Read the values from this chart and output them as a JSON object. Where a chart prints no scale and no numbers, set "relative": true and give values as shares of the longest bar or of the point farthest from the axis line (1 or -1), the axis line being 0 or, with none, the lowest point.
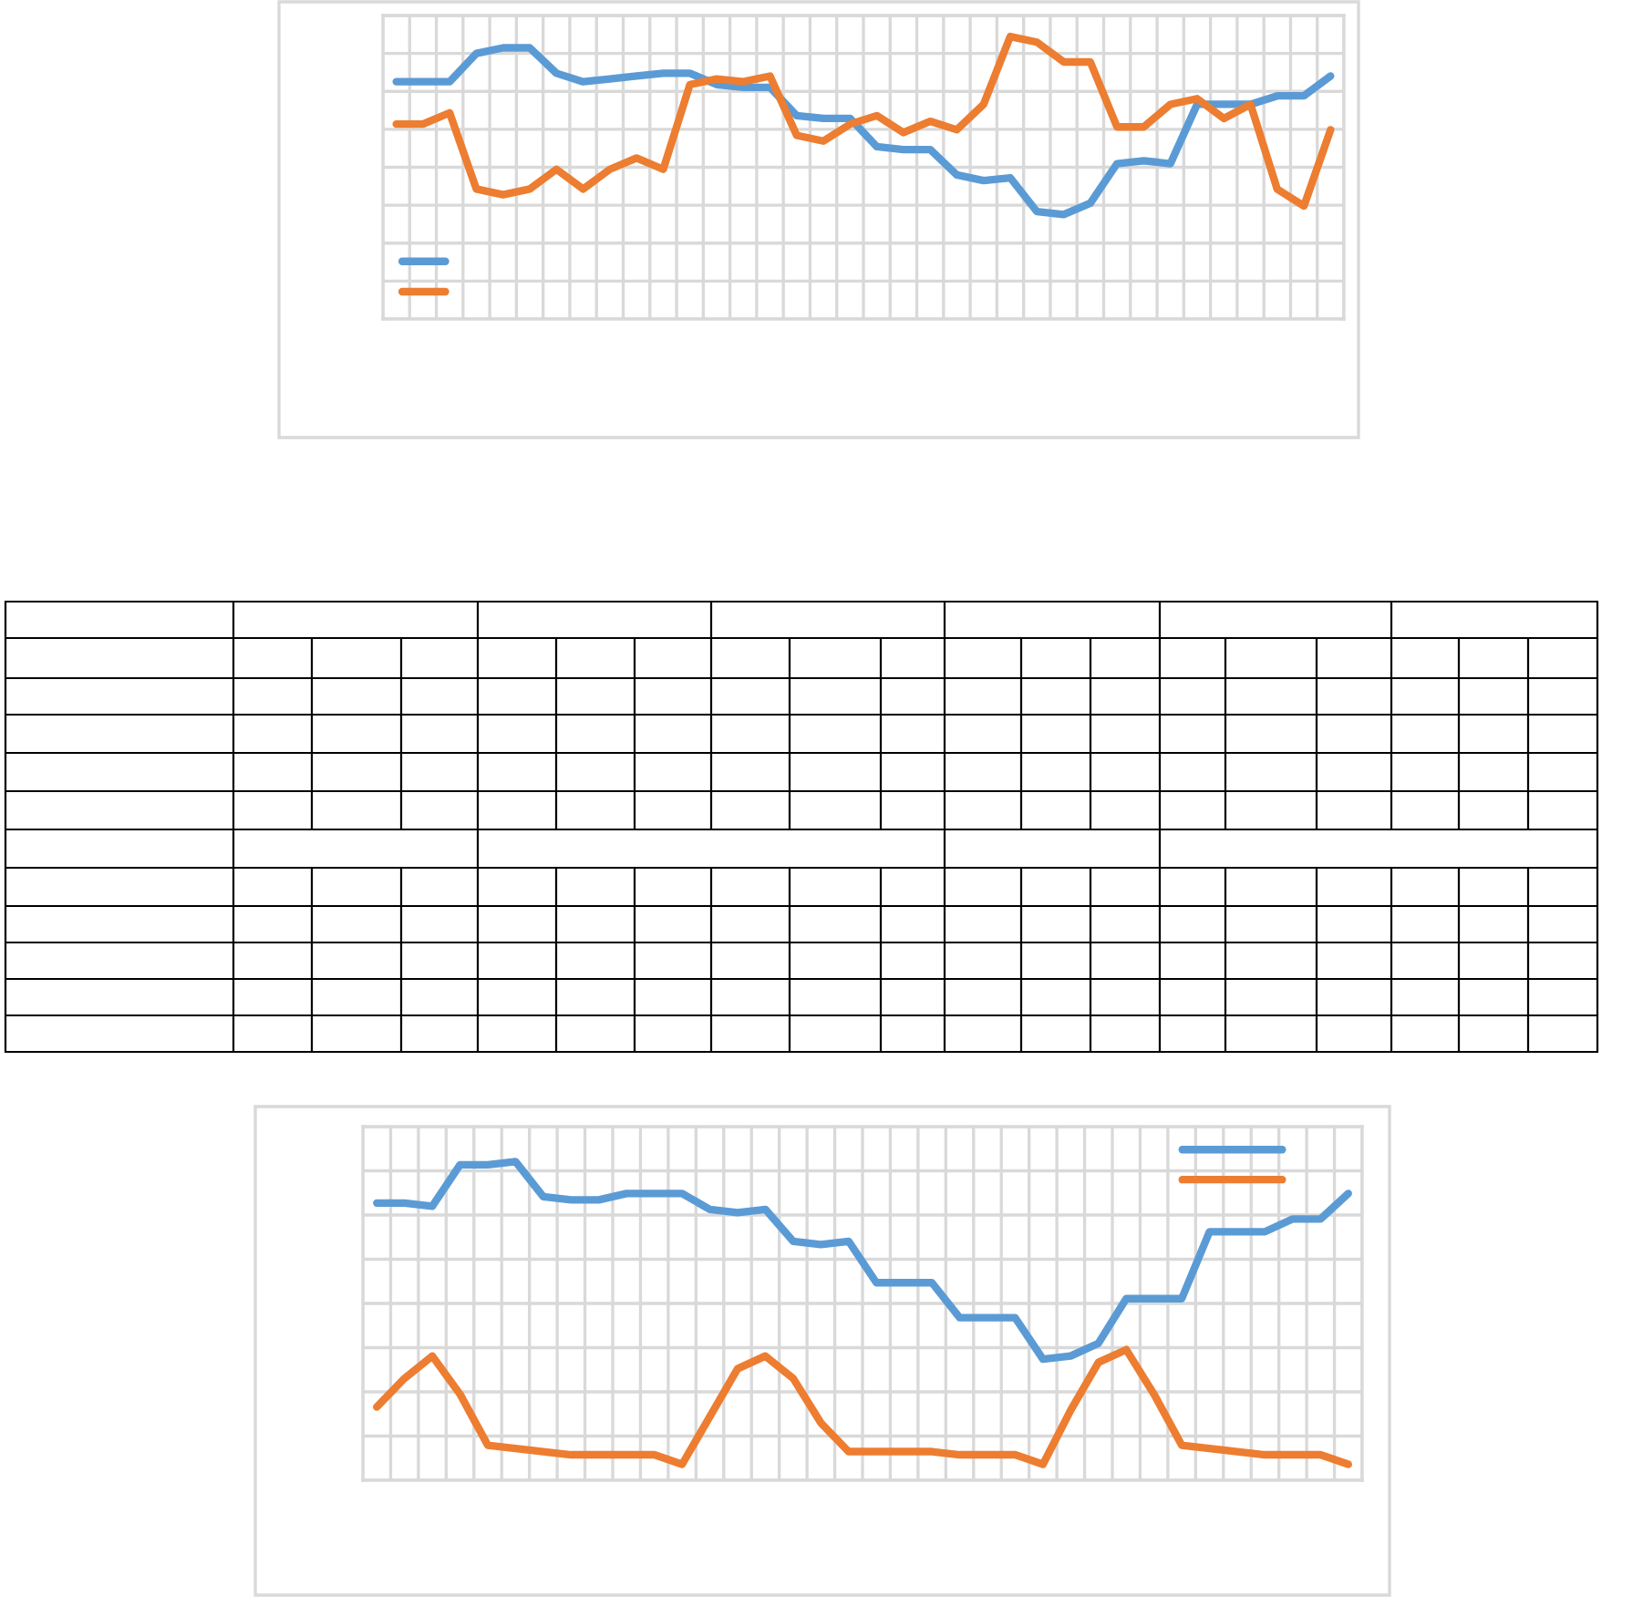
{
  "chart_data": [
    {
      "type": "line",
      "relative": true,
      "grid": true,
      "line_style": "solid",
      "marker": "none",
      "categories": [
        null,
        null,
        null,
        null,
        null,
        null,
        null,
        null,
        null,
        null,
        null,
        null,
        null,
        null,
        null,
        null,
        null,
        null,
        null,
        null,
        null,
        null,
        null,
        null,
        null,
        null,
        null,
        null,
        null,
        null,
        null,
        null,
        null,
        null,
        null,
        null
      ],
      "series": [
        {
          "color": "#5b9bd5",
          "values": [
            0.84,
            0.84,
            0.84,
            0.94,
            0.96,
            0.96,
            0.87,
            0.84,
            0.85,
            0.86,
            0.87,
            0.87,
            0.83,
            0.82,
            0.82,
            0.72,
            0.71,
            0.71,
            0.61,
            0.6,
            0.6,
            0.51,
            0.49,
            0.5,
            0.38,
            0.37,
            0.41,
            0.55,
            0.56,
            0.55,
            0.76,
            0.76,
            0.76,
            0.79,
            0.79,
            0.86
          ]
        },
        {
          "color": "#ed7d31",
          "values": [
            0.69,
            0.69,
            0.73,
            0.46,
            0.44,
            0.46,
            0.53,
            0.46,
            0.53,
            0.57,
            0.53,
            0.83,
            0.85,
            0.84,
            0.86,
            0.65,
            0.63,
            0.69,
            0.72,
            0.66,
            0.7,
            0.67,
            0.76,
            1,
            0.98,
            0.91,
            0.91,
            0.68,
            0.68,
            0.76,
            0.78,
            0.71,
            0.76,
            0.46,
            0.4,
            0.67
          ]
        }
      ]
    },
    {
      "type": "line",
      "relative": true,
      "grid": true,
      "line_style": "solid",
      "marker": "none",
      "categories": [
        null,
        null,
        null,
        null,
        null,
        null,
        null,
        null,
        null,
        null,
        null,
        null,
        null,
        null,
        null,
        null,
        null,
        null,
        null,
        null,
        null,
        null,
        null,
        null,
        null,
        null,
        null,
        null,
        null,
        null,
        null,
        null,
        null,
        null,
        null,
        null
      ],
      "series": [
        {
          "color": "#5b9bd5",
          "values": [
            0.87,
            0.87,
            0.86,
            0.99,
            0.99,
            1,
            0.89,
            0.88,
            0.88,
            0.9,
            0.9,
            0.9,
            0.85,
            0.84,
            0.85,
            0.75,
            0.74,
            0.75,
            0.62,
            0.62,
            0.62,
            0.51,
            0.51,
            0.51,
            0.38,
            0.39,
            0.43,
            0.57,
            0.57,
            0.57,
            0.78,
            0.78,
            0.78,
            0.82,
            0.82,
            0.9
          ]
        },
        {
          "color": "#ed7d31",
          "values": [
            0.23,
            0.32,
            0.39,
            0.27,
            0.11,
            0.1,
            0.09,
            0.08,
            0.08,
            0.08,
            0.08,
            0.05,
            0.2,
            0.35,
            0.39,
            0.32,
            0.18,
            0.09,
            0.09,
            0.09,
            0.09,
            0.08,
            0.08,
            0.08,
            0.05,
            0.22,
            0.37,
            0.41,
            0.27,
            0.11,
            0.1,
            0.09,
            0.08,
            0.08,
            0.08,
            0.05
          ]
        }
      ]
    }
  ]
}
